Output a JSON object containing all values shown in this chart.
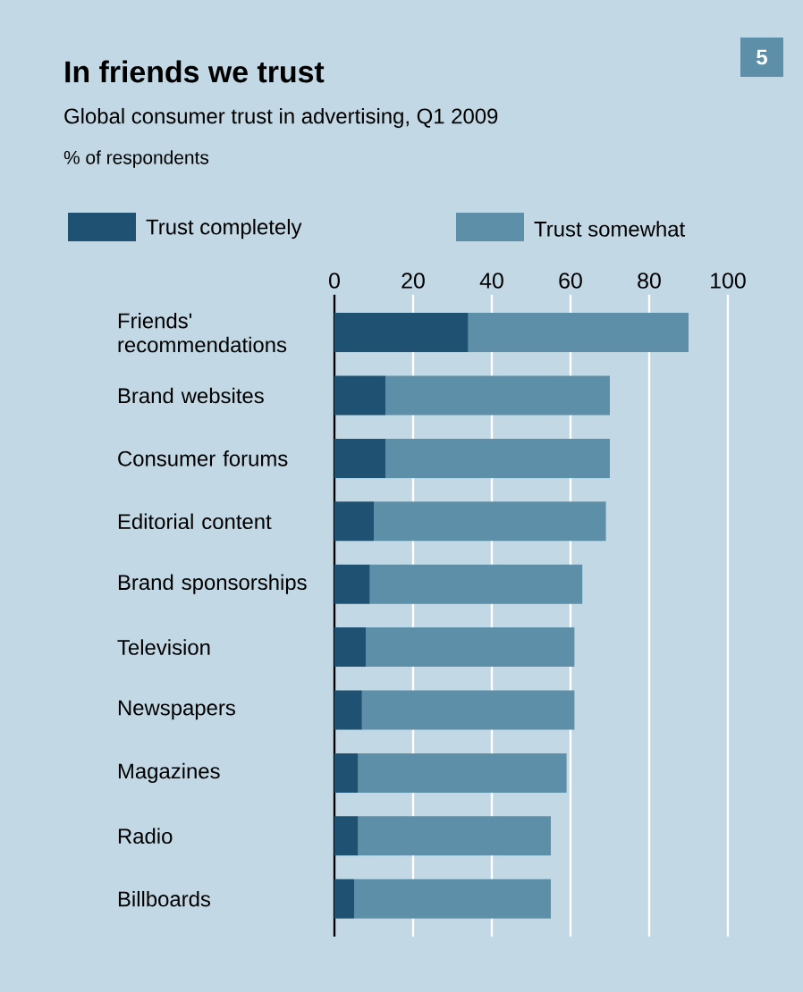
{
  "chart_data": {
    "type": "bar",
    "orientation": "horizontal",
    "stacked": true,
    "title": "In friends we trust",
    "subtitle": "Global consumer trust in advertising, Q1 2009",
    "annotations": [
      "5",
      "% of respondents"
    ],
    "categories": [
      "Friends' recommendations",
      "Brand websites",
      "Consumer forums",
      "Editorial content",
      "Brand sponsorships",
      "Television",
      "Newspapers",
      "Magazines",
      "Radio",
      "Billboards"
    ],
    "series": [
      {
        "name": "Trust completely",
        "color": "#1f5272",
        "values": [
          34,
          13,
          13,
          10,
          9,
          8,
          7,
          6,
          6,
          5
        ]
      },
      {
        "name": "Trust somewhat",
        "color": "#5e8fa8",
        "values": [
          56,
          57,
          57,
          59,
          54,
          53,
          54,
          53,
          49,
          50
        ]
      }
    ],
    "xlim": [
      0,
      100
    ],
    "xticks": [
      0,
      20,
      40,
      60,
      80,
      100
    ],
    "grid": "x",
    "legend": "top"
  }
}
